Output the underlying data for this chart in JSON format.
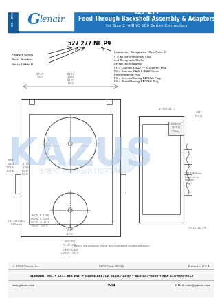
{
  "bg_color": "#ffffff",
  "header_blue": "#2175bc",
  "header_text_color": "#ffffff",
  "title_line1": "527-277",
  "title_line2": "Feed Through Backshell Assembly & Adapters",
  "title_line3": "for Size 2  ARINC 600 Series Connectors",
  "logo_text": "Glenair.",
  "sidebar_text1": "ARINC",
  "sidebar_text2": "600",
  "part_number_label": "527 277 NE P9",
  "product_series_label": "Product Series",
  "basic_number_label": "Basic Number",
  "finish_label": "Finish (Table I)",
  "connector_designator_label": "Connector Designator (See Note 2)",
  "connector_desc": [
    "P = All manufacturers' Plug",
    "and Receptacle Shells",
    "except the following:",
    "P1 = Cannon BKAD****322 Series Plug",
    "P2 = Cannon BKAC & BKAE Series",
    "Environmental Plug",
    "P3 = Cannon/Boeing BACObb Plug",
    "P4 = Radial/Boeing BACObb Plug"
  ],
  "footer_line1": "© 2004 Glenair, Inc.",
  "footer_cage": "CAGE Code 06324",
  "footer_printed": "Printed in U.S.A.",
  "footer_address": "GLENAIR, INC. • 1211 AIR WAY • GLENDALE, CA 91201-2497 • 818-247-6000 • FAX 818-500-9912",
  "footer_web": "www.glenair.com",
  "footer_page": "F-14",
  "footer_email": "E-Mail: sales@glenair.com",
  "metric_note": "Metric dimensions (mm) are indicated in parentheses.",
  "watermark_color": "#a8c8e8",
  "diagram_line_color": "#444444",
  "dim_color": "#555555"
}
